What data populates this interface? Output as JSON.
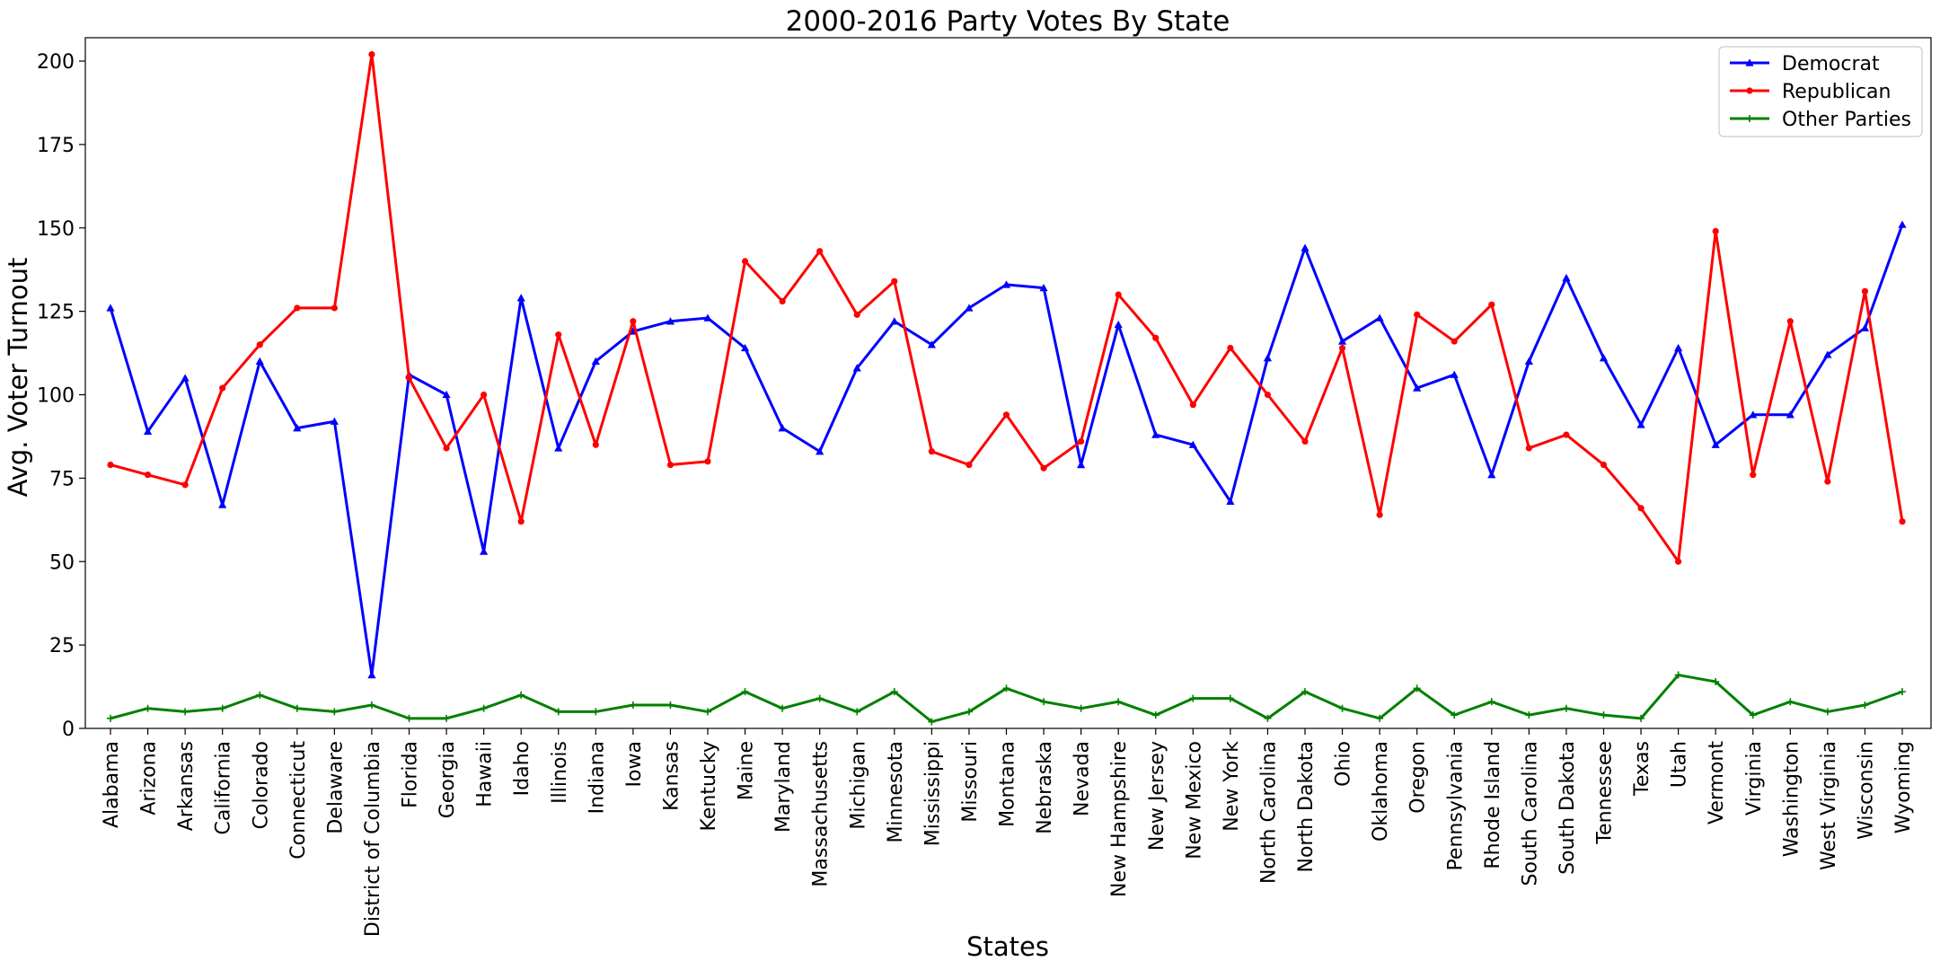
{
  "chart_data": {
    "type": "line",
    "title": "2000-2016 Party Votes By State",
    "xlabel": "States",
    "ylabel": "Avg. Voter Turnout",
    "ylim": [
      0,
      207
    ],
    "yticks": [
      0,
      25,
      50,
      75,
      100,
      125,
      150,
      175,
      200
    ],
    "grid": false,
    "legend_position": "top-right",
    "categories": [
      "Alabama",
      "Arizona",
      "Arkansas",
      "California",
      "Colorado",
      "Connecticut",
      "Delaware",
      "District of Columbia",
      "Florida",
      "Georgia",
      "Hawaii",
      "Idaho",
      "Illinois",
      "Indiana",
      "Iowa",
      "Kansas",
      "Kentucky",
      "Maine",
      "Maryland",
      "Massachusetts",
      "Michigan",
      "Minnesota",
      "Mississippi",
      "Missouri",
      "Montana",
      "Nebraska",
      "Nevada",
      "New Hampshire",
      "New Jersey",
      "New Mexico",
      "New York",
      "North Carolina",
      "North Dakota",
      "Ohio",
      "Oklahoma",
      "Oregon",
      "Pennsylvania",
      "Rhode Island",
      "South Carolina",
      "South Dakota",
      "Tennessee",
      "Texas",
      "Utah",
      "Vermont",
      "Virginia",
      "Washington",
      "West Virginia",
      "Wisconsin",
      "Wyoming"
    ],
    "series": [
      {
        "name": "Democrat",
        "color": "#0000ff",
        "marker": "triangle",
        "values": [
          126,
          89,
          105,
          67,
          110,
          90,
          92,
          16,
          106,
          100,
          53,
          129,
          84,
          110,
          119,
          122,
          123,
          114,
          90,
          83,
          108,
          122,
          115,
          126,
          133,
          132,
          79,
          121,
          88,
          85,
          68,
          111,
          144,
          116,
          123,
          102,
          106,
          76,
          110,
          135,
          111,
          91,
          114,
          85,
          94,
          94,
          112,
          120,
          151
        ]
      },
      {
        "name": "Republican",
        "color": "#ff0000",
        "marker": "circle",
        "values": [
          79,
          76,
          73,
          102,
          115,
          126,
          126,
          202,
          105,
          84,
          100,
          62,
          118,
          85,
          122,
          79,
          80,
          140,
          128,
          143,
          124,
          134,
          83,
          79,
          94,
          78,
          86,
          130,
          117,
          97,
          114,
          100,
          86,
          114,
          64,
          124,
          116,
          127,
          84,
          88,
          79,
          66,
          50,
          149,
          76,
          122,
          74,
          131,
          62
        ]
      },
      {
        "name": "Other Parties",
        "color": "#008000",
        "marker": "plus",
        "values": [
          3,
          6,
          5,
          6,
          10,
          6,
          5,
          7,
          3,
          3,
          6,
          10,
          5,
          5,
          7,
          7,
          5,
          11,
          6,
          9,
          5,
          11,
          2,
          5,
          12,
          8,
          6,
          8,
          4,
          9,
          9,
          3,
          11,
          6,
          3,
          12,
          4,
          8,
          4,
          6,
          4,
          3,
          16,
          14,
          4,
          8,
          5,
          7,
          11
        ]
      }
    ]
  }
}
